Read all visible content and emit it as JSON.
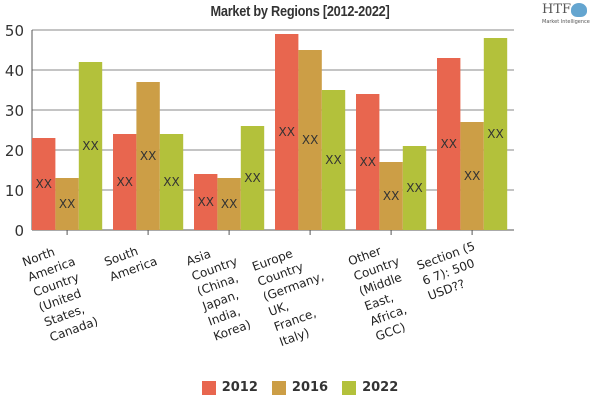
{
  "chart_data": {
    "type": "bar",
    "title": "Market by Regions [2012-2022]",
    "categories": [
      "North\nAmerica\nCountry\n(United\nStates,\nCanada)",
      "South\nAmerica",
      "Asia\nCountry\n(China,\nJapan,\nIndia,\nKorea)",
      "Europe\nCountry\n(Germany,\nUK,\nFrance,\nItaly)",
      "Other\nCountry\n(Middle\nEast,\nAfrica,\nGCC)",
      "Section (5\n6 7): 500\nUSD??"
    ],
    "series": [
      {
        "name": "2012",
        "color": "#e8664f",
        "values": [
          23,
          24,
          14,
          49,
          34,
          43
        ]
      },
      {
        "name": "2016",
        "color": "#cc9e46",
        "values": [
          13,
          37,
          13,
          45,
          17,
          27
        ]
      },
      {
        "name": "2022",
        "color": "#b3c13b",
        "values": [
          42,
          24,
          26,
          35,
          21,
          48
        ]
      }
    ],
    "data_label": "XX",
    "yticks": [
      "0",
      "10",
      "20",
      "30",
      "40",
      "50"
    ],
    "ylim": [
      0,
      50
    ],
    "grid": true,
    "legend_position": "bottom",
    "xlabel": "",
    "ylabel": ""
  },
  "logo": {
    "text": "HTF",
    "subtext": "Market Intelligence"
  }
}
